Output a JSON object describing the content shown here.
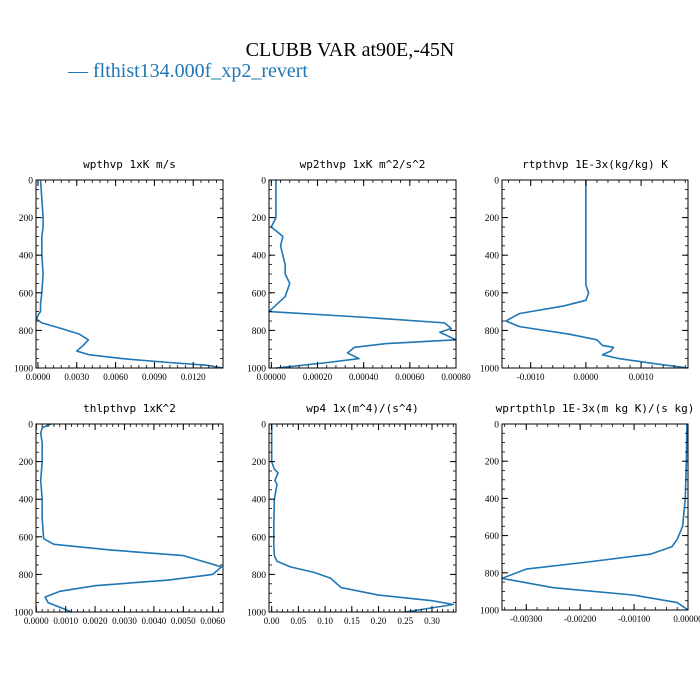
{
  "title": "CLUBB VAR at90E,-45N",
  "legend": {
    "label": "— flthist134.000f_xp2_revert",
    "color": "#1f77b4"
  },
  "chart_data": [
    {
      "type": "line",
      "title": "wpthvp   1xK m/s",
      "xlim": [
        -0.00015,
        0.0143
      ],
      "ylim": [
        1000,
        0
      ],
      "xticks": [
        0,
        0.003,
        0.006,
        0.009,
        0.012
      ],
      "xtick_labels": [
        "0.0000",
        "0.0030",
        "0.0060",
        "0.0090",
        "0.0120"
      ],
      "yticks": [
        0,
        200,
        400,
        600,
        800,
        1000
      ],
      "ytick_labels": [
        "0",
        "200",
        "400",
        "600",
        "800",
        "1000"
      ],
      "series": [
        {
          "x": [
            0.0002,
            0.0003,
            0.0004,
            0.0004,
            0.0003,
            0.0003,
            0.0004,
            0.0003,
            0.0002,
            0.0002,
            0.0,
            -0.0001,
            0.0003,
            0.0018,
            0.0032,
            0.0039,
            0.0035,
            0.003,
            0.004,
            0.0065,
            0.01,
            0.013,
            0.0143
          ],
          "y": [
            0,
            100,
            200,
            250,
            300,
            400,
            500,
            600,
            660,
            700,
            720,
            740,
            760,
            790,
            820,
            850,
            880,
            910,
            930,
            950,
            970,
            985,
            1000
          ]
        }
      ]
    },
    {
      "type": "line",
      "title": "wp2thvp   1xK m^2/s^2",
      "xlim": [
        -1e-05,
        0.0008
      ],
      "ylim": [
        1000,
        0
      ],
      "xticks": [
        0,
        0.0002,
        0.0004,
        0.0006,
        0.0008
      ],
      "xtick_labels": [
        "0.00000",
        "0.00020",
        "0.00040",
        "0.00060",
        "0.00080"
      ],
      "yticks": [
        0,
        200,
        400,
        600,
        800,
        1000
      ],
      "ytick_labels": [
        "0",
        "200",
        "400",
        "600",
        "800",
        "1000"
      ],
      "series": [
        {
          "x": [
            2e-05,
            2e-05,
            2e-05,
            0.0,
            3e-05,
            5e-05,
            4e-05,
            5e-05,
            6e-05,
            6e-05,
            8e-05,
            6e-05,
            -1e-05,
            0.0004,
            0.00075,
            0.00078,
            0.00073,
            0.0008,
            0.0005,
            0.00036,
            0.00033,
            0.00038,
            0.00025,
            0.0001,
            2e-05
          ],
          "y": [
            0,
            100,
            200,
            250,
            280,
            300,
            350,
            400,
            450,
            500,
            550,
            620,
            700,
            730,
            760,
            790,
            810,
            850,
            870,
            890,
            920,
            950,
            970,
            990,
            1000
          ]
        }
      ]
    },
    {
      "type": "line",
      "title": "rtpthvp   1E-3x(kg/kg) K",
      "xlim": [
        -0.00152,
        0.00185
      ],
      "ylim": [
        1000,
        0
      ],
      "xticks": [
        -0.001,
        0.0,
        0.001
      ],
      "xtick_labels": [
        "-0.0010",
        "0.0000",
        "0.0010"
      ],
      "yticks": [
        0,
        200,
        400,
        600,
        800,
        1000
      ],
      "ytick_labels": [
        "0",
        "200",
        "400",
        "600",
        "800",
        "1000"
      ],
      "series": [
        {
          "x": [
            0.0,
            0.0,
            0.0,
            0.0,
            5e-05,
            0.0,
            -0.0004,
            -0.0012,
            -0.00145,
            -0.0012,
            -0.0003,
            0.0002,
            0.0003,
            0.0005,
            0.00045,
            0.0003,
            0.0006,
            0.0012,
            0.00185
          ],
          "y": [
            0,
            200,
            400,
            560,
            600,
            640,
            670,
            710,
            750,
            780,
            820,
            850,
            880,
            890,
            910,
            930,
            950,
            975,
            1000
          ]
        }
      ]
    },
    {
      "type": "line",
      "title": "thlpthvp   1xK^2",
      "xlim": [
        -1e-05,
        0.00635
      ],
      "ylim": [
        1000,
        0
      ],
      "xticks": [
        0,
        0.001,
        0.002,
        0.003,
        0.004,
        0.005,
        0.006
      ],
      "xtick_labels": [
        "0.0000",
        "0.0010",
        "0.0020",
        "0.0030",
        "0.0040",
        "0.0050",
        "0.0060"
      ],
      "yticks": [
        0,
        200,
        400,
        600,
        800,
        1000
      ],
      "ytick_labels": [
        "0",
        "200",
        "400",
        "600",
        "800",
        "1000"
      ],
      "series": [
        {
          "x": [
            0.0005,
            0.0002,
            0.00015,
            0.0002,
            0.0002,
            0.00015,
            0.0002,
            0.0002,
            0.00025,
            0.0006,
            0.0025,
            0.005,
            0.0063,
            0.006,
            0.0045,
            0.002,
            0.0008,
            0.0003,
            0.0004,
            0.0008,
            0.0012
          ],
          "y": [
            0,
            20,
            50,
            100,
            200,
            300,
            400,
            500,
            610,
            640,
            670,
            700,
            760,
            800,
            830,
            860,
            890,
            920,
            950,
            975,
            1000
          ]
        }
      ]
    },
    {
      "type": "line",
      "title": "wp4   1x(m^4)/(s^4)",
      "xlim": [
        -0.005,
        0.345
      ],
      "ylim": [
        1000,
        0
      ],
      "xticks": [
        0.0,
        0.05,
        0.1,
        0.15,
        0.2,
        0.25,
        0.3
      ],
      "xtick_labels": [
        "0.00",
        "0.05",
        "0.10",
        "0.15",
        "0.20",
        "0.25",
        "0.30"
      ],
      "yticks": [
        0,
        200,
        400,
        600,
        800,
        1000
      ],
      "ytick_labels": [
        "0",
        "200",
        "400",
        "600",
        "800",
        "1000"
      ],
      "series": [
        {
          "x": [
            0.0,
            0.0,
            0.005,
            0.012,
            0.006,
            0.01,
            0.005,
            0.004,
            0.004,
            0.005,
            0.01,
            0.035,
            0.08,
            0.11,
            0.13,
            0.2,
            0.3,
            0.34,
            0.25
          ],
          "y": [
            0,
            200,
            240,
            260,
            300,
            320,
            400,
            550,
            650,
            700,
            730,
            760,
            790,
            820,
            870,
            910,
            940,
            960,
            1000
          ]
        }
      ]
    },
    {
      "type": "line",
      "title": "wprtpthlp   1E-3x(m kg K)/(s kg)",
      "xlim": [
        -0.00345,
        0.0
      ],
      "ylim": [
        1000,
        0
      ],
      "xticks": [
        -0.003,
        -0.002,
        -0.001,
        0.0
      ],
      "xtick_labels": [
        "-0.00300",
        "-0.00200",
        "-0.00100",
        "0.00000"
      ],
      "yticks": [
        0,
        200,
        400,
        600,
        800,
        1000
      ],
      "ytick_labels": [
        "0",
        "200",
        "400",
        "600",
        "800",
        "1000"
      ],
      "series": [
        {
          "x": [
            -2e-05,
            -3e-05,
            -5e-05,
            -0.0001,
            -0.0002,
            -0.0003,
            -0.0007,
            -0.0018,
            -0.003,
            -0.00345,
            -0.0025,
            -0.001,
            -0.0002,
            0.0
          ],
          "y": [
            0,
            200,
            400,
            550,
            620,
            660,
            700,
            740,
            780,
            830,
            880,
            920,
            960,
            1000
          ]
        }
      ]
    }
  ]
}
